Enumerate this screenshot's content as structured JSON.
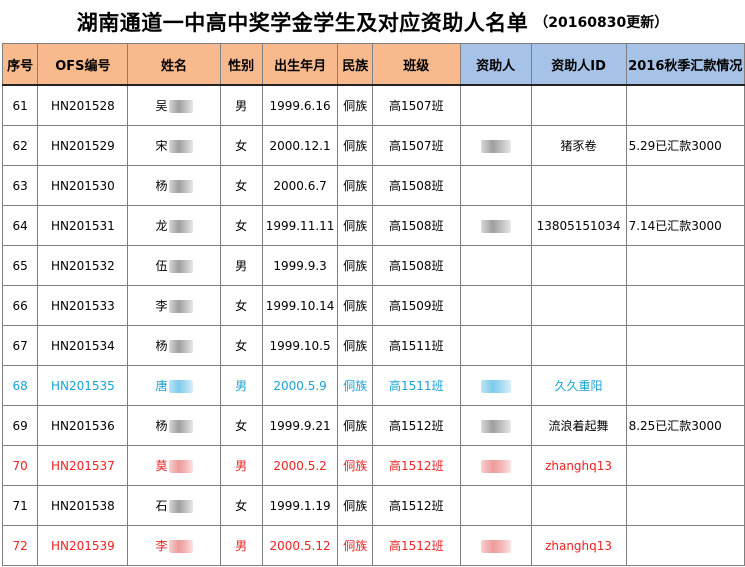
{
  "title": {
    "main": "湖南通道一中高中奖学金学生及对应资助人名单",
    "sub": "（20160830更新）"
  },
  "columns": [
    {
      "key": "no",
      "label": "序号",
      "group": "orange"
    },
    {
      "key": "ofs",
      "label": "OFS编号",
      "group": "orange"
    },
    {
      "key": "name",
      "label": "姓名",
      "group": "orange"
    },
    {
      "key": "gender",
      "label": "性别",
      "group": "orange"
    },
    {
      "key": "birth",
      "label": "出生年月",
      "group": "orange"
    },
    {
      "key": "ethnic",
      "label": "民族",
      "group": "orange"
    },
    {
      "key": "class",
      "label": "班级",
      "group": "orange"
    },
    {
      "key": "sponsor",
      "label": "资助人",
      "group": "blue"
    },
    {
      "key": "sponsor_id",
      "label": "资助人ID",
      "group": "blue"
    },
    {
      "key": "remit",
      "label": "2016秋季汇款情况",
      "group": "blue"
    }
  ],
  "rows": [
    {
      "no": "61",
      "ofs": "HN201528",
      "name": "吴",
      "gender": "男",
      "birth": "1999.6.16",
      "ethnic": "侗族",
      "class": "高1507班",
      "sponsor_blurred": false,
      "sponsor_id": "",
      "remit": "",
      "color": "black"
    },
    {
      "no": "62",
      "ofs": "HN201529",
      "name": "宋",
      "gender": "女",
      "birth": "2000.12.1",
      "ethnic": "侗族",
      "class": "高1507班",
      "sponsor_blurred": true,
      "sponsor_id": "猪豕卷",
      "remit": "5.29已汇款3000",
      "color": "black"
    },
    {
      "no": "63",
      "ofs": "HN201530",
      "name": "杨",
      "gender": "女",
      "birth": "2000.6.7",
      "ethnic": "侗族",
      "class": "高1508班",
      "sponsor_blurred": false,
      "sponsor_id": "",
      "remit": "",
      "color": "black"
    },
    {
      "no": "64",
      "ofs": "HN201531",
      "name": "龙",
      "gender": "女",
      "birth": "1999.11.11",
      "ethnic": "侗族",
      "class": "高1508班",
      "sponsor_blurred": true,
      "sponsor_id": "13805151034",
      "remit": "7.14已汇款3000",
      "color": "black"
    },
    {
      "no": "65",
      "ofs": "HN201532",
      "name": "伍",
      "gender": "男",
      "birth": "1999.9.3",
      "ethnic": "侗族",
      "class": "高1508班",
      "sponsor_blurred": false,
      "sponsor_id": "",
      "remit": "",
      "color": "black"
    },
    {
      "no": "66",
      "ofs": "HN201533",
      "name": "李",
      "gender": "女",
      "birth": "1999.10.14",
      "ethnic": "侗族",
      "class": "高1509班",
      "sponsor_blurred": false,
      "sponsor_id": "",
      "remit": "",
      "color": "black"
    },
    {
      "no": "67",
      "ofs": "HN201534",
      "name": "杨",
      "gender": "女",
      "birth": "1999.10.5",
      "ethnic": "侗族",
      "class": "高1511班",
      "sponsor_blurred": false,
      "sponsor_id": "",
      "remit": "",
      "color": "black"
    },
    {
      "no": "68",
      "ofs": "HN201535",
      "name": "唐",
      "gender": "男",
      "birth": "2000.5.9",
      "ethnic": "侗族",
      "class": "高1511班",
      "sponsor_blurred": true,
      "sponsor_id": "久久重阳",
      "remit": "",
      "color": "blue"
    },
    {
      "no": "69",
      "ofs": "HN201536",
      "name": "杨",
      "gender": "女",
      "birth": "1999.9.21",
      "ethnic": "侗族",
      "class": "高1512班",
      "sponsor_blurred": true,
      "sponsor_id": "流浪着起舞",
      "remit": "8.25已汇款3000",
      "color": "black"
    },
    {
      "no": "70",
      "ofs": "HN201537",
      "name": "莫",
      "gender": "男",
      "birth": "2000.5.2",
      "ethnic": "侗族",
      "class": "高1512班",
      "sponsor_blurred": true,
      "sponsor_id": "zhanghq13",
      "remit": "",
      "color": "red"
    },
    {
      "no": "71",
      "ofs": "HN201538",
      "name": "石",
      "gender": "女",
      "birth": "1999.1.19",
      "ethnic": "侗族",
      "class": "高1512班",
      "sponsor_blurred": false,
      "sponsor_id": "",
      "remit": "",
      "color": "black"
    },
    {
      "no": "72",
      "ofs": "HN201539",
      "name": "李",
      "gender": "男",
      "birth": "2000.5.12",
      "ethnic": "侗族",
      "class": "高1512班",
      "sponsor_blurred": true,
      "sponsor_id": "zhanghq13",
      "remit": "",
      "color": "red"
    }
  ],
  "colors": {
    "header_orange": "#f8ba8c",
    "header_blue": "#a6c2e6",
    "row_blue_text": "#1aa2d4",
    "row_red_text": "#ee2222"
  }
}
